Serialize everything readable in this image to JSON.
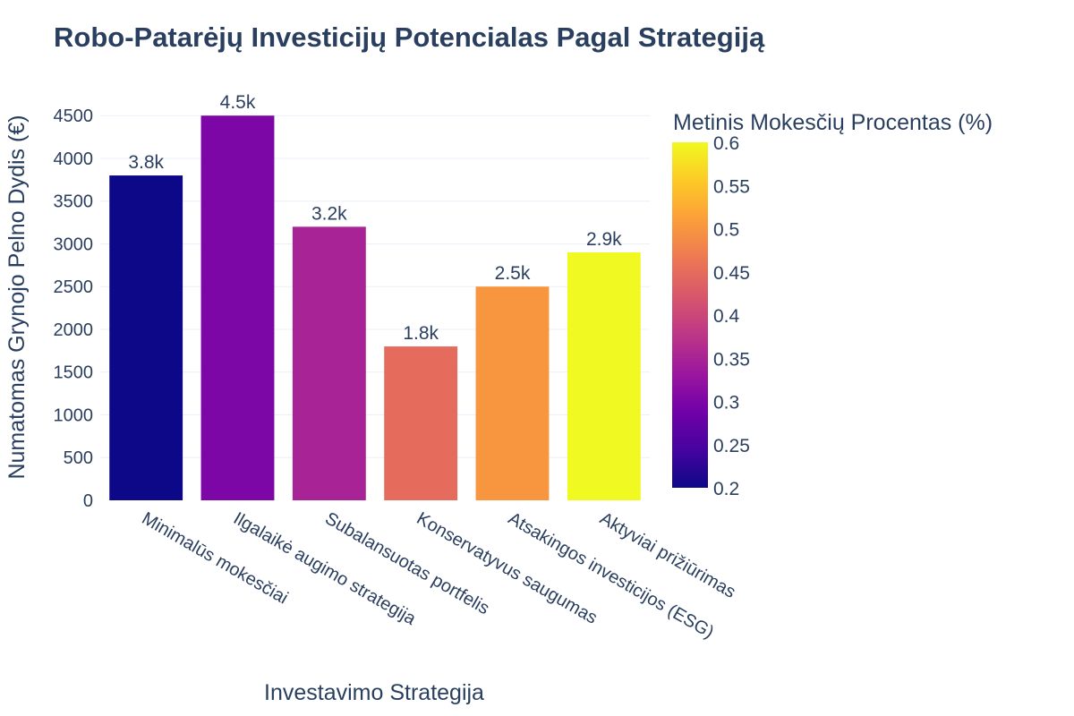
{
  "chart_data": {
    "type": "bar",
    "title": "Robo-Patarėjų Investicijų Potencialas Pagal Strategiją",
    "xlabel": "Investavimo Strategija",
    "ylabel": "Numatomas Grynojo Pelno Dydis (€)",
    "categories": [
      "Minimalūs mokesčiai",
      "Ilgalaikė augimo strategija",
      "Subalansuotas portfelis",
      "Konservatyvus saugumas",
      "Atsakingos investicijos (ESG)",
      "Aktyviai prižiūrimas"
    ],
    "values": [
      3800,
      4500,
      3200,
      1800,
      2500,
      2900
    ],
    "value_labels": [
      "3.8k",
      "4.5k",
      "3.2k",
      "1.8k",
      "2.5k",
      "2.9k"
    ],
    "color_values": [
      0.2,
      0.3,
      0.35,
      0.45,
      0.5,
      0.6
    ],
    "ylim": [
      0,
      4680
    ],
    "yticks": [
      0,
      500,
      1000,
      1500,
      2000,
      2500,
      3000,
      3500,
      4000,
      4500
    ],
    "grid": true,
    "colorbar": {
      "title": "Metinis Mokesčių Procentas (%)",
      "range": [
        0.2,
        0.6
      ],
      "ticks": [
        0.2,
        0.25,
        0.3,
        0.35,
        0.4,
        0.45,
        0.5,
        0.55,
        0.6
      ],
      "tick_labels": [
        "0.2",
        "0.25",
        "0.3",
        "0.35",
        "0.4",
        "0.45",
        "0.5",
        "0.55",
        "0.6"
      ],
      "colorscale": "plasma",
      "colorscale_stops": [
        "#0d0887",
        "#46039f",
        "#7201a8",
        "#9c179e",
        "#bd3786",
        "#d8576b",
        "#ed7953",
        "#fb9f3a",
        "#fdca26",
        "#f0f921"
      ]
    }
  }
}
